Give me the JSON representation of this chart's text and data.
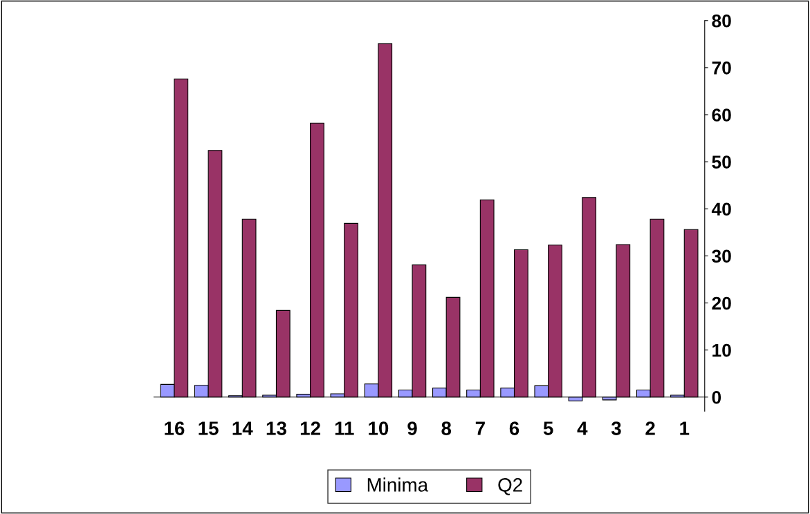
{
  "chart_data": {
    "type": "bar",
    "categories": [
      "16",
      "15",
      "14",
      "13",
      "12",
      "11",
      "10",
      "9",
      "8",
      "7",
      "6",
      "5",
      "4",
      "3",
      "2",
      "1"
    ],
    "series": [
      {
        "name": "Minima",
        "color": "#9999ff",
        "values": [
          2.7,
          2.5,
          0.3,
          0.4,
          0.6,
          0.7,
          2.8,
          1.5,
          1.9,
          1.5,
          1.9,
          2.4,
          -0.8,
          -0.6,
          1.5,
          0.4
        ]
      },
      {
        "name": "Q2",
        "color": "#993366",
        "values": [
          67.6,
          52.4,
          37.8,
          18.4,
          58.2,
          36.9,
          75.1,
          28.1,
          21.2,
          41.9,
          31.3,
          32.3,
          42.4,
          32.4,
          37.8,
          35.6
        ]
      }
    ],
    "ylim": [
      -3,
      80
    ],
    "yticks": [
      0,
      10,
      20,
      30,
      40,
      50,
      60,
      70,
      80
    ],
    "grid": false,
    "legend": "bottom"
  }
}
